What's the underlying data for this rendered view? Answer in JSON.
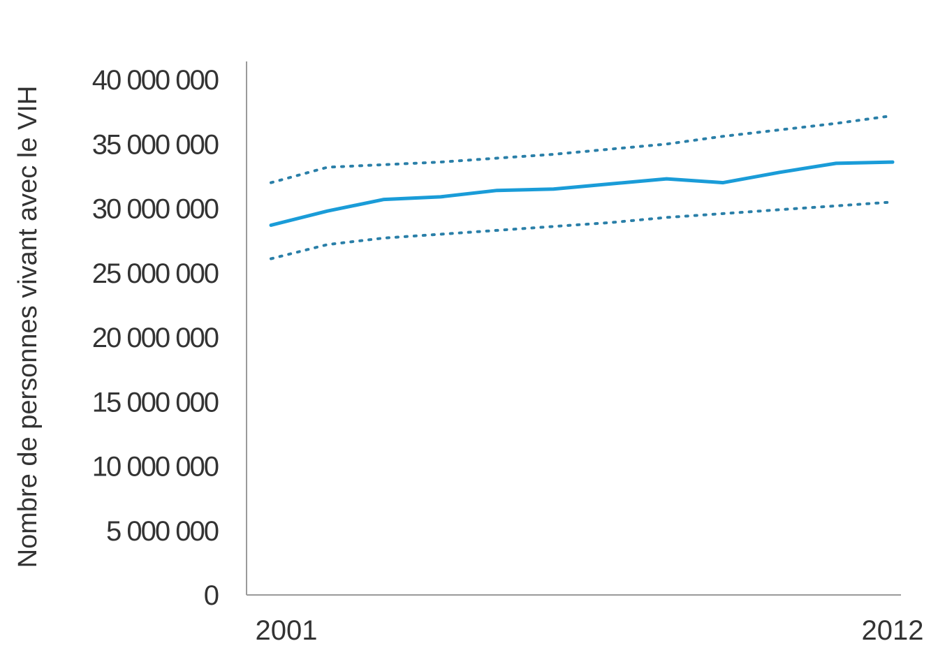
{
  "chart_data": {
    "type": "line",
    "ylabel": "Nombre de personnes vivant avec le VIH",
    "xlabel": "",
    "x": [
      2001,
      2002,
      2003,
      2004,
      2005,
      2006,
      2007,
      2008,
      2009,
      2010,
      2011,
      2012
    ],
    "x_tick_labels": [
      "2001",
      "2012"
    ],
    "y_tick_labels": [
      "0",
      "5 000 000",
      "10 000 000",
      "15 000 000",
      "20 000 000",
      "25 000 000",
      "30 000 000",
      "35 000 000",
      "40 000 000"
    ],
    "y_ticks": [
      0,
      5000000,
      10000000,
      15000000,
      20000000,
      25000000,
      30000000,
      35000000,
      40000000
    ],
    "ylim": [
      0,
      40000000
    ],
    "grid": false,
    "series": [
      {
        "role": "upper",
        "style": "dotted",
        "values": [
          32000000,
          33200000,
          33400000,
          33600000,
          33900000,
          34200000,
          34600000,
          35000000,
          35600000,
          36100000,
          36600000,
          37200000
        ]
      },
      {
        "role": "central",
        "style": "solid",
        "values": [
          28700000,
          29800000,
          30700000,
          30900000,
          31400000,
          31500000,
          31900000,
          32300000,
          32000000,
          32800000,
          33500000,
          33600000
        ]
      },
      {
        "role": "lower",
        "style": "dotted",
        "values": [
          26100000,
          27200000,
          27700000,
          28000000,
          28300000,
          28600000,
          28900000,
          29300000,
          29600000,
          29900000,
          30200000,
          30500000
        ]
      }
    ],
    "colors": {
      "central": "#1a9cd8",
      "bounds": "#2a7fa8",
      "axis": "#9a9a9a",
      "text": "#333333"
    }
  }
}
